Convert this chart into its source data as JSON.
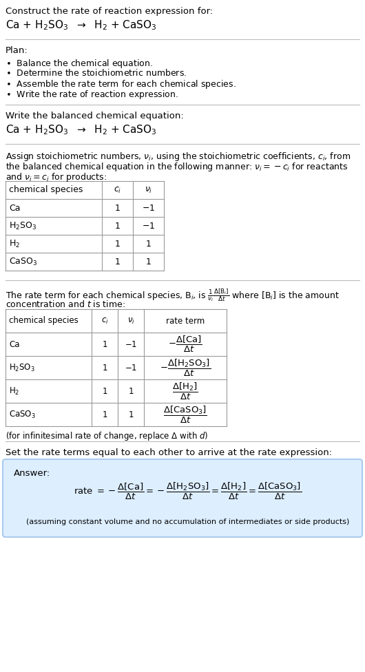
{
  "bg_color": "#ffffff",
  "text_color": "#000000",
  "title_line1": "Construct the rate of reaction expression for:",
  "title_line2": "Ca + H$_2$SO$_3$  $\\rightarrow$  H$_2$ + CaSO$_3$",
  "plan_header": "Plan:",
  "plan_items": [
    "$\\bullet$  Balance the chemical equation.",
    "$\\bullet$  Determine the stoichiometric numbers.",
    "$\\bullet$  Assemble the rate term for each chemical species.",
    "$\\bullet$  Write the rate of reaction expression."
  ],
  "balanced_header": "Write the balanced chemical equation:",
  "balanced_eq": "Ca + H$_2$SO$_3$  $\\rightarrow$  H$_2$ + CaSO$_3$",
  "stoich_text1": "Assign stoichiometric numbers, $\\nu_i$, using the stoichiometric coefficients, $c_i$, from",
  "stoich_text2": "the balanced chemical equation in the following manner: $\\nu_i = -c_i$ for reactants",
  "stoich_text3": "and $\\nu_i = c_i$ for products:",
  "table1_headers": [
    "chemical species",
    "$c_i$",
    "$\\nu_i$"
  ],
  "table1_rows": [
    [
      "Ca",
      "1",
      "$-$1"
    ],
    [
      "H$_2$SO$_3$",
      "1",
      "$-$1"
    ],
    [
      "H$_2$",
      "1",
      "1"
    ],
    [
      "CaSO$_3$",
      "1",
      "1"
    ]
  ],
  "rate_text1": "The rate term for each chemical species, B$_i$, is $\\frac{1}{\\nu_i}\\frac{\\Delta[\\mathrm{B}_i]}{\\Delta t}$ where [B$_i$] is the amount",
  "rate_text2": "concentration and $t$ is time:",
  "table2_headers": [
    "chemical species",
    "$c_i$",
    "$\\nu_i$",
    "rate term"
  ],
  "table2_rows": [
    [
      "Ca",
      "1",
      "$-$1",
      "$-\\dfrac{\\Delta[\\mathrm{Ca}]}{\\Delta t}$"
    ],
    [
      "H$_2$SO$_3$",
      "1",
      "$-$1",
      "$-\\dfrac{\\Delta[\\mathrm{H_2SO_3}]}{\\Delta t}$"
    ],
    [
      "H$_2$",
      "1",
      "1",
      "$\\dfrac{\\Delta[\\mathrm{H_2}]}{\\Delta t}$"
    ],
    [
      "CaSO$_3$",
      "1",
      "1",
      "$\\dfrac{\\Delta[\\mathrm{CaSO_3}]}{\\Delta t}$"
    ]
  ],
  "infinitesimal_note": "(for infinitesimal rate of change, replace $\\Delta$ with $d$)",
  "set_equal_text": "Set the rate terms equal to each other to arrive at the rate expression:",
  "answer_box_color": "#ddeeff",
  "answer_border_color": "#aaccee",
  "answer_label": "Answer:",
  "rate_expression": "rate $= -\\dfrac{\\Delta[\\mathrm{Ca}]}{\\Delta t} = -\\dfrac{\\Delta[\\mathrm{H_2SO_3}]}{\\Delta t} = \\dfrac{\\Delta[\\mathrm{H_2}]}{\\Delta t} = \\dfrac{\\Delta[\\mathrm{CaSO_3}]}{\\Delta t}$",
  "assumption_note": "(assuming constant volume and no accumulation of intermediates or side products)"
}
